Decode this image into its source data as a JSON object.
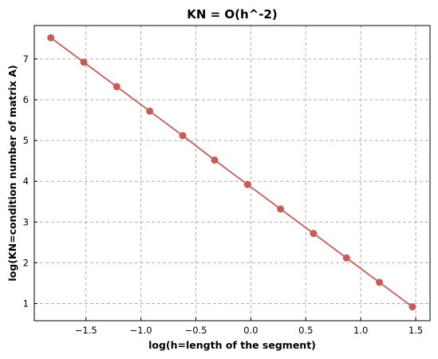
{
  "chart_data": {
    "type": "line",
    "title": "KN = O(h^-2)",
    "xlabel": "log(h=length of the segment)",
    "ylabel": "log(KN=condition number of matrix A)",
    "xlim": [
      -1.97,
      1.63
    ],
    "ylim": [
      0.58,
      7.82
    ],
    "xticks": [
      -1.5,
      -1.0,
      -0.5,
      0.0,
      0.5,
      1.0,
      1.5
    ],
    "xtick_labels": [
      "−1.5",
      "−1.0",
      "−0.5",
      "0.0",
      "0.5",
      "1.0",
      "1.5"
    ],
    "yticks": [
      1,
      2,
      3,
      4,
      5,
      6,
      7
    ],
    "ytick_labels": [
      "1",
      "2",
      "3",
      "4",
      "5",
      "6",
      "7"
    ],
    "grid": true,
    "color": "#c85a5a",
    "series": [
      {
        "x": [
          -1.82,
          -1.52,
          -1.22,
          -0.92,
          -0.62,
          -0.33,
          -0.03,
          0.27,
          0.57,
          0.87,
          1.17,
          1.47
        ],
        "y": [
          7.52,
          6.92,
          6.32,
          5.72,
          5.12,
          4.52,
          3.92,
          3.32,
          2.72,
          2.12,
          1.52,
          0.92
        ]
      }
    ]
  }
}
